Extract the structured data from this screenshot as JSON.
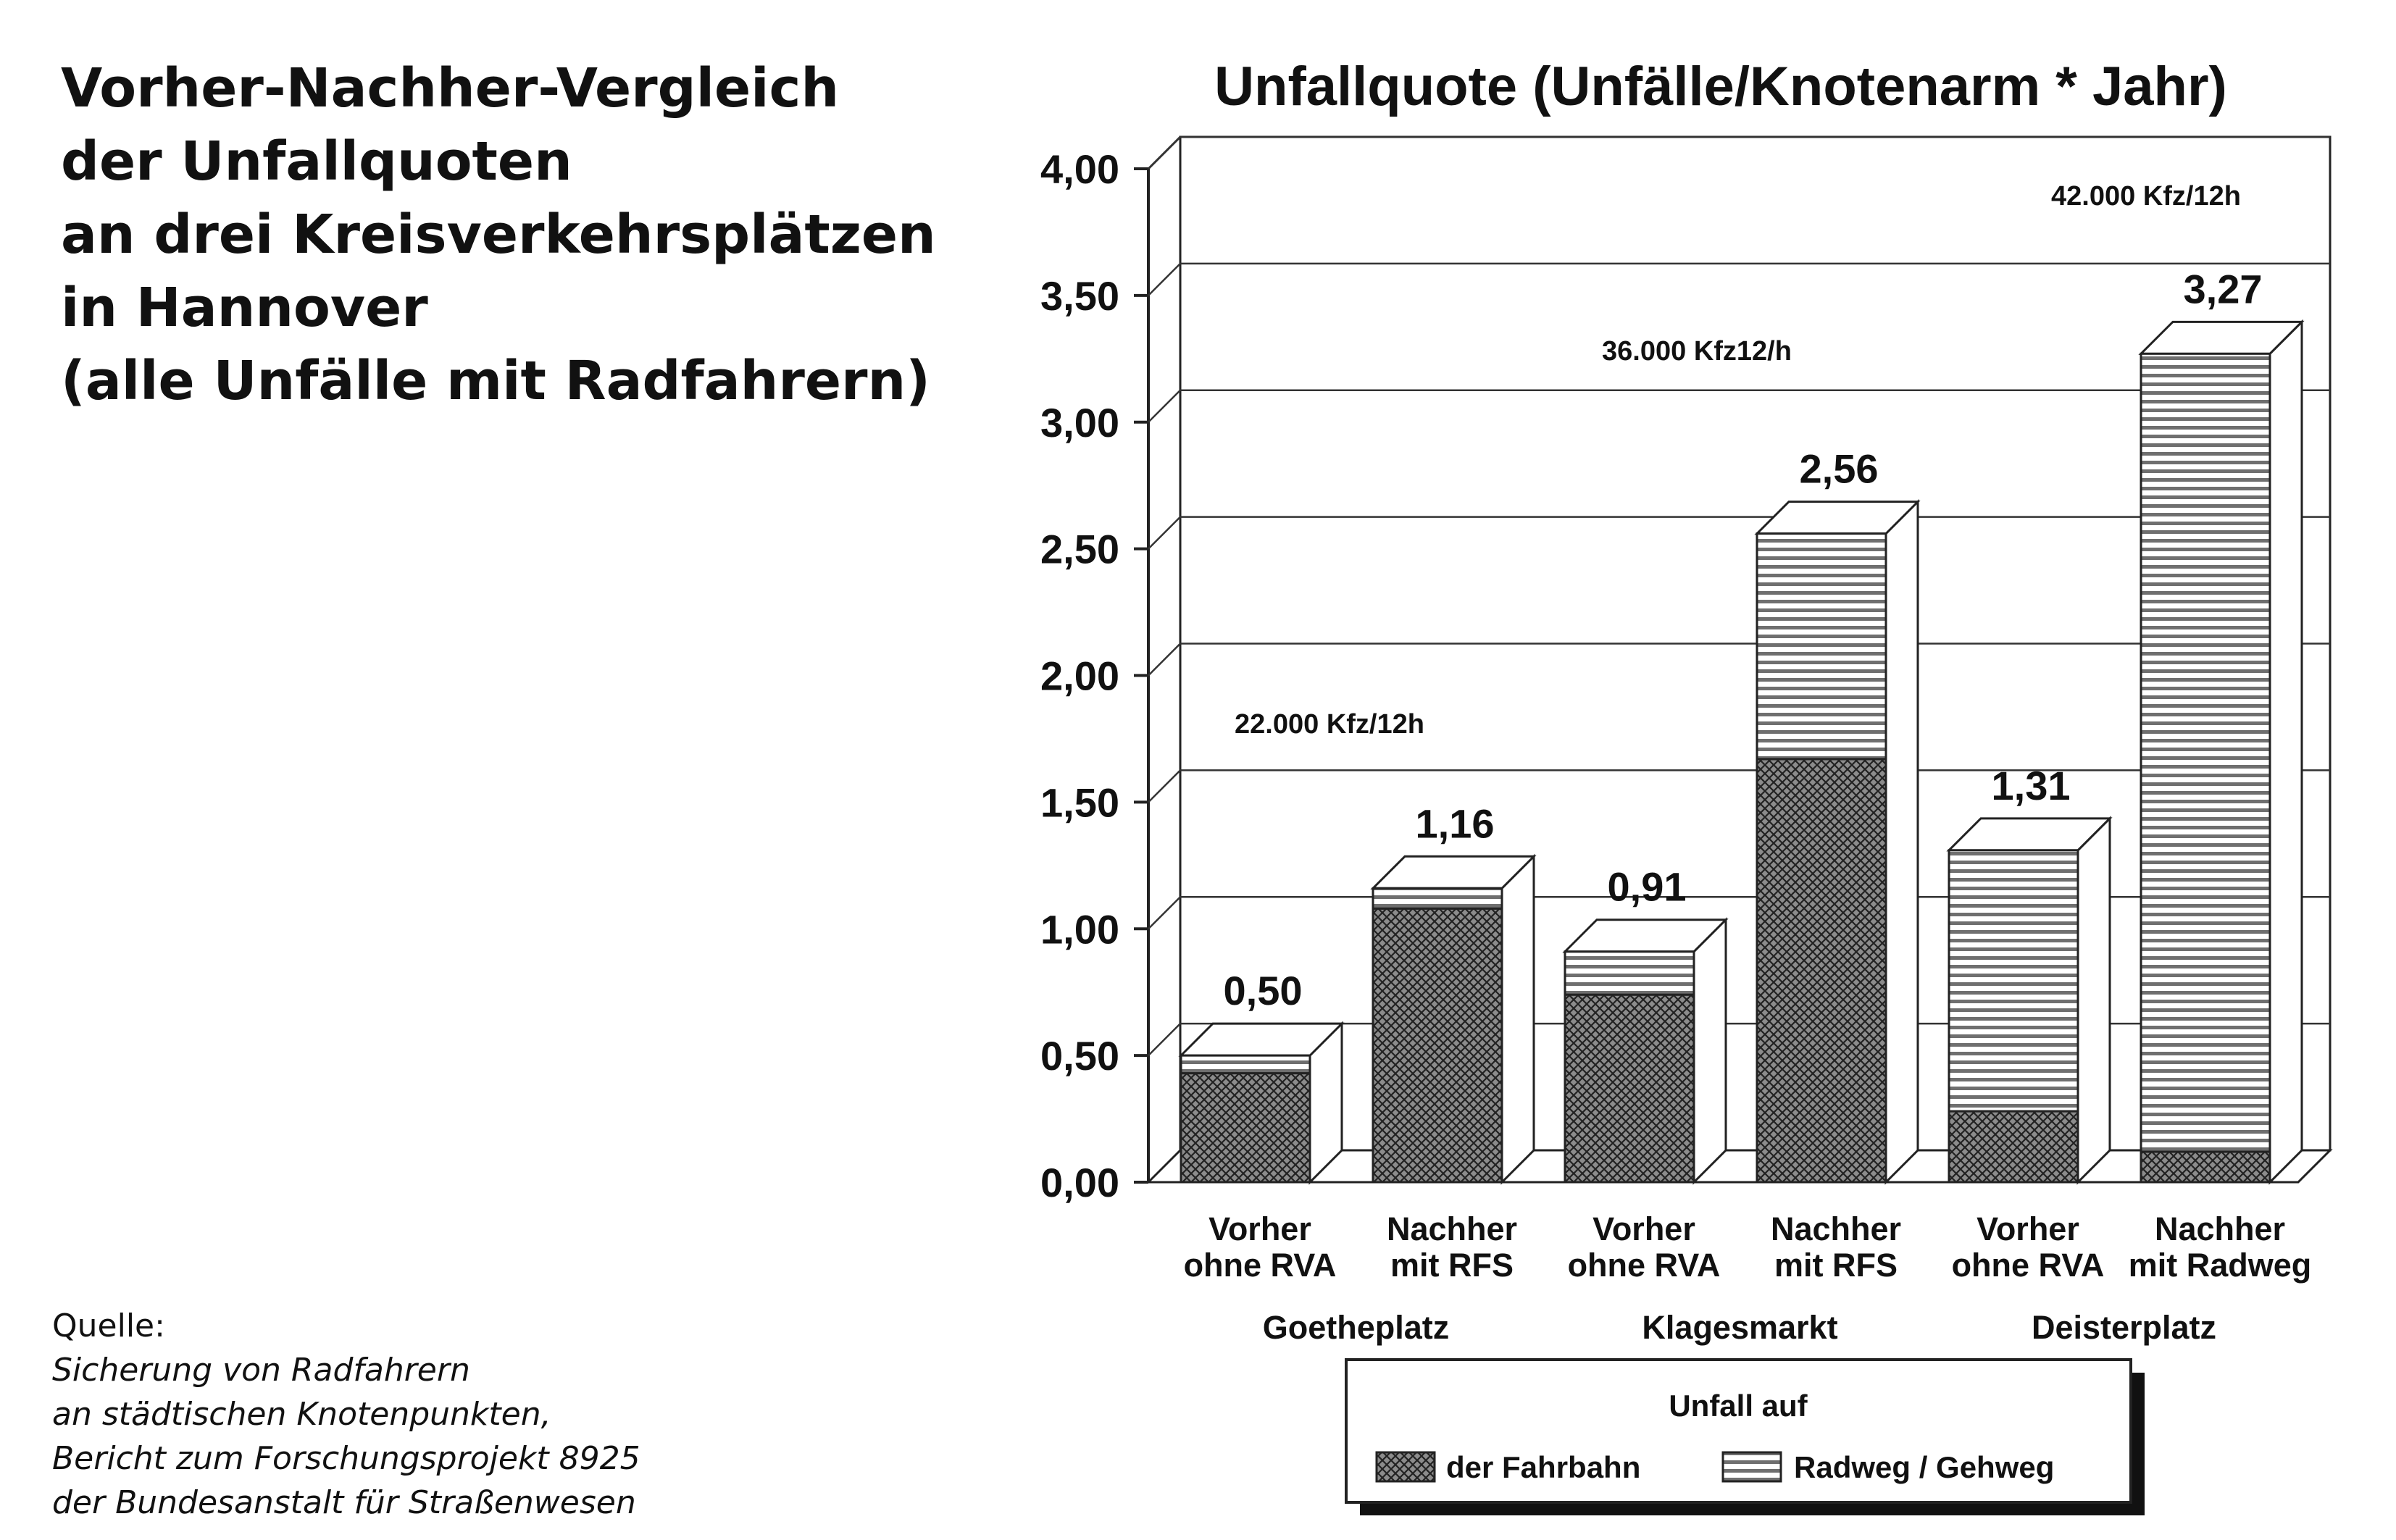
{
  "heading": {
    "lines": [
      "Vorher-Nachher-Vergleich",
      "der Unfallquoten",
      "an drei Kreisverkehrsplätzen",
      "in Hannover",
      "(alle Unfälle mit Radfahrern)"
    ]
  },
  "source": {
    "label": "Quelle:",
    "lines": [
      "Sicherung von Radfahrern",
      "an städtischen Knotenpunkten,",
      "Bericht zum Forschungsprojekt 8925",
      "der Bundesanstalt für Straßenwesen"
    ]
  },
  "chart_data": {
    "type": "bar",
    "stacked": true,
    "three_d": true,
    "title": "Unfallquote (Unfälle/Knotenarm * Jahr)",
    "ylim": [
      0,
      4.0
    ],
    "y_ticks": [
      "0,00",
      "0,50",
      "1,00",
      "1,50",
      "2,00",
      "2,50",
      "3,00",
      "3,50",
      "4,00"
    ],
    "grid": true,
    "categories": [
      [
        "Vorher",
        "ohne RVA"
      ],
      [
        "Nachher",
        "mit RFS"
      ],
      [
        "Vorher",
        "ohne RVA"
      ],
      [
        "Nachher",
        "mit RFS"
      ],
      [
        "Vorher",
        "ohne RVA"
      ],
      [
        "Nachher",
        "mit Radweg"
      ]
    ],
    "groups": [
      "Goetheplatz",
      "Klagesmarkt",
      "Deisterplatz"
    ],
    "group_annotations": [
      "22.000 Kfz/12h",
      "36.000 Kfz12/h",
      "42.000 Kfz/12h"
    ],
    "totals": [
      0.5,
      1.16,
      0.91,
      2.56,
      1.31,
      3.27
    ],
    "total_labels": [
      "0,50",
      "1,16",
      "0,91",
      "2,56",
      "1,31",
      "3,27"
    ],
    "series": [
      {
        "name": "der Fahrbahn",
        "pattern": "crosshatch",
        "values": [
          0.43,
          1.08,
          0.74,
          1.67,
          0.28,
          0.12
        ]
      },
      {
        "name": "Radweg / Gehweg",
        "pattern": "horizontal-lines",
        "values": [
          0.07,
          0.08,
          0.17,
          0.89,
          1.03,
          3.15
        ]
      }
    ],
    "legend": {
      "title": "Unfall auf",
      "position": "bottom"
    }
  }
}
